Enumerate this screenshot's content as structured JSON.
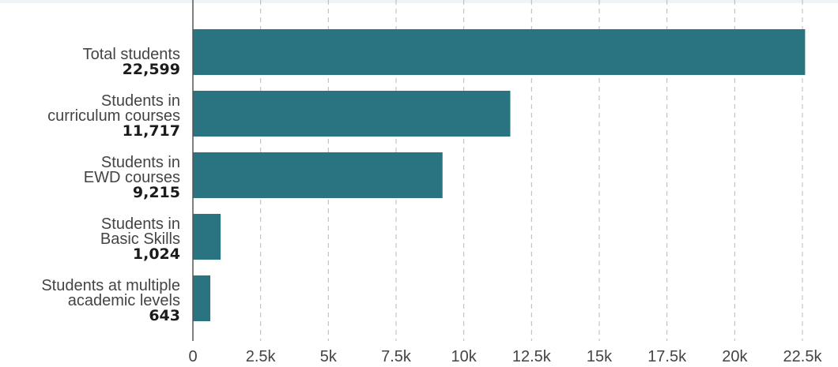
{
  "chart_data": {
    "type": "bar",
    "orientation": "horizontal",
    "categories": [
      [
        "Total students"
      ],
      [
        "Students in",
        "curriculum courses"
      ],
      [
        "Students in",
        "EWD courses"
      ],
      [
        "Students in",
        "Basic Skills"
      ],
      [
        "Students at multiple",
        "academic levels"
      ]
    ],
    "values": [
      22599,
      11717,
      9215,
      1024,
      643
    ],
    "value_labels": [
      "22,599",
      "11,717",
      "9,215",
      "1,024",
      "643"
    ],
    "ticks": [
      0,
      2500,
      5000,
      7500,
      10000,
      12500,
      15000,
      17500,
      20000,
      22500
    ],
    "tick_labels": [
      "0",
      "2.5k",
      "5k",
      "7.5k",
      "10k",
      "12.5k",
      "15k",
      "17.5k",
      "20k",
      "22.5k"
    ],
    "xlim": [
      0,
      22500
    ],
    "grid": true,
    "legend": "none",
    "colors": {
      "bar": "#2a7482"
    }
  }
}
